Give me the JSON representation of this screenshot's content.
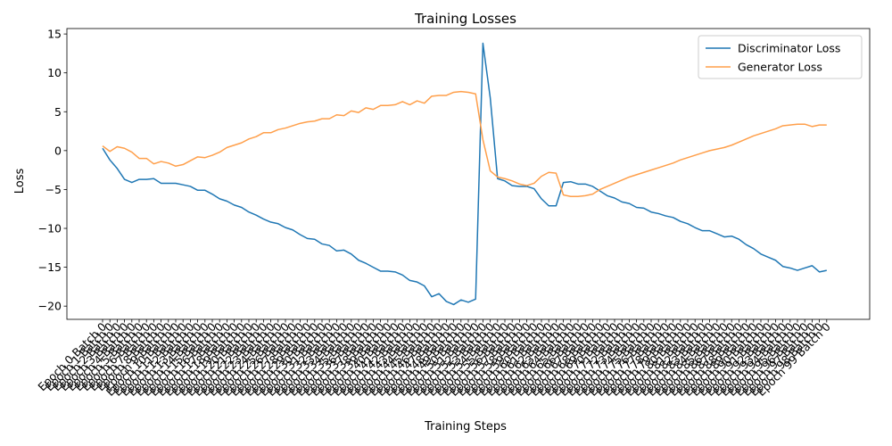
{
  "chart_data": {
    "type": "line",
    "title": "Training Losses",
    "xlabel": "Training Steps",
    "ylabel": "Loss",
    "ylim": [
      -21.7,
      15.7
    ],
    "yticks": [
      15,
      10,
      5,
      0,
      -5,
      -10,
      -15,
      -20
    ],
    "legend_position": "top-right",
    "grid": false,
    "x": [
      "Epoch 0 Batch 0",
      "Epoch 1 Batch 0",
      "Epoch 2 Batch 0",
      "Epoch 3 Batch 0",
      "Epoch 4 Batch 0",
      "Epoch 5 Batch 0",
      "Epoch 6 Batch 0",
      "Epoch 7 Batch 0",
      "Epoch 8 Batch 0",
      "Epoch 9 Batch 0",
      "Epoch 10 Batch 0",
      "Epoch 11 Batch 0",
      "Epoch 12 Batch 0",
      "Epoch 13 Batch 0",
      "Epoch 14 Batch 0",
      "Epoch 15 Batch 0",
      "Epoch 16 Batch 0",
      "Epoch 17 Batch 0",
      "Epoch 18 Batch 0",
      "Epoch 19 Batch 0",
      "Epoch 20 Batch 0",
      "Epoch 21 Batch 0",
      "Epoch 22 Batch 0",
      "Epoch 23 Batch 0",
      "Epoch 24 Batch 0",
      "Epoch 25 Batch 0",
      "Epoch 26 Batch 0",
      "Epoch 27 Batch 0",
      "Epoch 28 Batch 0",
      "Epoch 29 Batch 0",
      "Epoch 30 Batch 0",
      "Epoch 31 Batch 0",
      "Epoch 32 Batch 0",
      "Epoch 33 Batch 0",
      "Epoch 34 Batch 0",
      "Epoch 35 Batch 0",
      "Epoch 36 Batch 0",
      "Epoch 37 Batch 0",
      "Epoch 38 Batch 0",
      "Epoch 39 Batch 0",
      "Epoch 40 Batch 0",
      "Epoch 41 Batch 0",
      "Epoch 42 Batch 0",
      "Epoch 43 Batch 0",
      "Epoch 44 Batch 0",
      "Epoch 45 Batch 0",
      "Epoch 46 Batch 0",
      "Epoch 47 Batch 0",
      "Epoch 48 Batch 0",
      "Epoch 49 Batch 0",
      "Epoch 50 Batch 0",
      "Epoch 51 Batch 0",
      "Epoch 52 Batch 0",
      "Epoch 53 Batch 0",
      "Epoch 54 Batch 0",
      "Epoch 55 Batch 0",
      "Epoch 56 Batch 0",
      "Epoch 57 Batch 0",
      "Epoch 58 Batch 0",
      "Epoch 59 Batch 0",
      "Epoch 60 Batch 0",
      "Epoch 61 Batch 0",
      "Epoch 62 Batch 0",
      "Epoch 63 Batch 0",
      "Epoch 64 Batch 0",
      "Epoch 65 Batch 0",
      "Epoch 66 Batch 0",
      "Epoch 67 Batch 0",
      "Epoch 68 Batch 0",
      "Epoch 69 Batch 0",
      "Epoch 70 Batch 0",
      "Epoch 71 Batch 0",
      "Epoch 72 Batch 0",
      "Epoch 73 Batch 0",
      "Epoch 74 Batch 0",
      "Epoch 75 Batch 0",
      "Epoch 76 Batch 0",
      "Epoch 77 Batch 0",
      "Epoch 78 Batch 0",
      "Epoch 79 Batch 0",
      "Epoch 80 Batch 0",
      "Epoch 81 Batch 0",
      "Epoch 82 Batch 0",
      "Epoch 83 Batch 0",
      "Epoch 84 Batch 0",
      "Epoch 85 Batch 0",
      "Epoch 86 Batch 0",
      "Epoch 87 Batch 0",
      "Epoch 88 Batch 0",
      "Epoch 89 Batch 0",
      "Epoch 90 Batch 0",
      "Epoch 91 Batch 0",
      "Epoch 92 Batch 0",
      "Epoch 93 Batch 0",
      "Epoch 94 Batch 0",
      "Epoch 95 Batch 0",
      "Epoch 96 Batch 0",
      "Epoch 97 Batch 0",
      "Epoch 98 Batch 0",
      "Epoch 99 Batch 0"
    ],
    "series": [
      {
        "name": "Discriminator Loss",
        "color": "#1f77b4",
        "values": [
          0.3,
          -1.2,
          -2.3,
          -3.7,
          -4.1,
          -3.7,
          -3.7,
          -3.6,
          -4.2,
          -4.2,
          -4.2,
          -4.4,
          -4.6,
          -5.1,
          -5.1,
          -5.6,
          -6.2,
          -6.5,
          -7.0,
          -7.3,
          -7.9,
          -8.3,
          -8.8,
          -9.2,
          -9.4,
          -9.9,
          -10.2,
          -10.8,
          -11.3,
          -11.4,
          -12.0,
          -12.2,
          -12.9,
          -12.8,
          -13.3,
          -14.1,
          -14.5,
          -15.0,
          -15.5,
          -15.5,
          -15.6,
          -16.0,
          -16.7,
          -16.9,
          -17.4,
          -18.8,
          -18.4,
          -19.4,
          -19.8,
          -19.2,
          -19.5,
          -19.1,
          13.8,
          6.8,
          -3.6,
          -3.9,
          -4.5,
          -4.6,
          -4.6,
          -4.9,
          -6.2,
          -7.1,
          -7.1,
          -4.1,
          -4.0,
          -4.3,
          -4.3,
          -4.6,
          -5.2,
          -5.8,
          -6.1,
          -6.6,
          -6.8,
          -7.3,
          -7.4,
          -7.9,
          -8.1,
          -8.4,
          -8.6,
          -9.1,
          -9.4,
          -9.9,
          -10.3,
          -10.3,
          -10.7,
          -11.1,
          -11.0,
          -11.4,
          -12.1,
          -12.6,
          -13.3,
          -13.7,
          -14.1,
          -14.9,
          -15.1,
          -15.4,
          -15.1,
          -14.8,
          -15.6,
          -15.4
        ]
      },
      {
        "name": "Generator Loss",
        "color": "#ff9f4a",
        "values": [
          0.6,
          -0.1,
          0.5,
          0.3,
          -0.2,
          -1.0,
          -1.0,
          -1.7,
          -1.4,
          -1.6,
          -2.0,
          -1.8,
          -1.3,
          -0.8,
          -0.9,
          -0.6,
          -0.2,
          0.4,
          0.7,
          1.0,
          1.5,
          1.8,
          2.3,
          2.3,
          2.7,
          2.9,
          3.2,
          3.5,
          3.7,
          3.8,
          4.1,
          4.1,
          4.6,
          4.5,
          5.1,
          4.9,
          5.5,
          5.3,
          5.8,
          5.8,
          5.9,
          6.3,
          5.9,
          6.4,
          6.1,
          7.0,
          7.1,
          7.1,
          7.5,
          7.6,
          7.5,
          7.3,
          1.4,
          -2.6,
          -3.4,
          -3.6,
          -3.9,
          -4.3,
          -4.5,
          -4.2,
          -3.3,
          -2.8,
          -2.9,
          -5.7,
          -5.9,
          -5.9,
          -5.8,
          -5.6,
          -5.0,
          -4.6,
          -4.2,
          -3.8,
          -3.4,
          -3.1,
          -2.8,
          -2.5,
          -2.2,
          -1.9,
          -1.6,
          -1.2,
          -0.9,
          -0.6,
          -0.3,
          0.0,
          0.2,
          0.4,
          0.7,
          1.1,
          1.5,
          1.9,
          2.2,
          2.5,
          2.8,
          3.2,
          3.3,
          3.4,
          3.4,
          3.1,
          3.3,
          3.3
        ]
      }
    ]
  }
}
